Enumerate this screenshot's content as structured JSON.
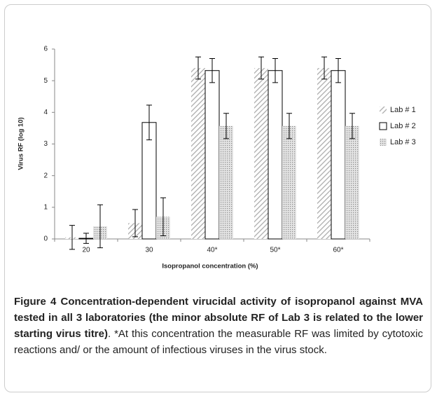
{
  "chart_data": {
    "type": "bar",
    "y_label": "Virus RF (log 10)",
    "x_label": "Isopropanol concentration (%)",
    "categories": [
      "20",
      "30",
      "40*",
      "50*",
      "60*"
    ],
    "series": [
      {
        "name": "Lab # 1",
        "color": "#999999",
        "values": [
          0.05,
          0.5,
          5.4,
          5.4,
          5.4
        ],
        "errors": [
          0.38,
          0.43,
          0.35,
          0.35,
          0.35
        ]
      },
      {
        "name": "Lab # 2",
        "color": "#000000",
        "values": [
          0.02,
          3.68,
          5.32,
          5.32,
          5.32
        ],
        "errors": [
          0.16,
          0.55,
          0.38,
          0.38,
          0.38
        ]
      },
      {
        "name": "Lab # 3",
        "color": "#888888",
        "values": [
          0.4,
          0.7,
          3.57,
          3.57,
          3.57
        ],
        "errors": [
          0.68,
          0.6,
          0.4,
          0.4,
          0.4
        ]
      }
    ],
    "ylim": [
      0,
      6
    ],
    "yticks": [
      0,
      1,
      2,
      3,
      4,
      5,
      6
    ],
    "legend": "right"
  },
  "caption": {
    "title": "Figure 4 Concentration-dependent virucidal activity of isopropanol against MVA tested in all 3 laboratories (the minor absolute RF of Lab 3 is related to the lower starting virus titre)",
    "text": ". *At this concentration the measurable RF was limited by cytotoxic reactions and/ or the amount of infectious viruses in the virus stock."
  }
}
